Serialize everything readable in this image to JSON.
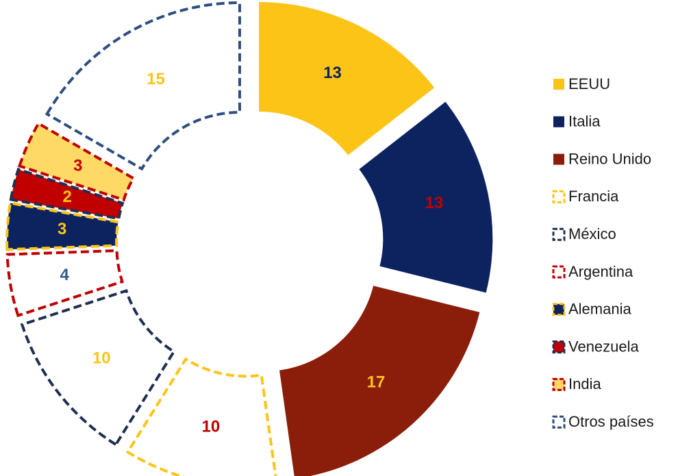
{
  "chart_data": {
    "type": "donut",
    "categories": [
      "EEUU",
      "Italia",
      "Reino Unido",
      "Francia",
      "México",
      "Argentina",
      "Alemania",
      "Venezuela",
      "India",
      "Otros países"
    ],
    "values": [
      13,
      13,
      17,
      10,
      10,
      4,
      3,
      2,
      3,
      15
    ],
    "colors": [
      "#fdc418",
      "#0d2360",
      "#8b1e0b",
      "#ffffff",
      "#ffffff",
      "#ffffff",
      "#0d2360",
      "#c00000",
      "#ffd966",
      "#ffffff"
    ],
    "border_colors": [
      null,
      null,
      null,
      "#fdc418",
      "#1f3050",
      "#c00000",
      "#fdc418",
      "#1f3050",
      "#c00000",
      "#2e4e7e"
    ],
    "label_colors": [
      "#0d2360",
      "#c00000",
      "#fdc418",
      "#c00000",
      "#fdc418",
      "#2e5a8a",
      "#fdc418",
      "#fdc418",
      "#c00000",
      "#fdc418"
    ],
    "legend": "right"
  }
}
